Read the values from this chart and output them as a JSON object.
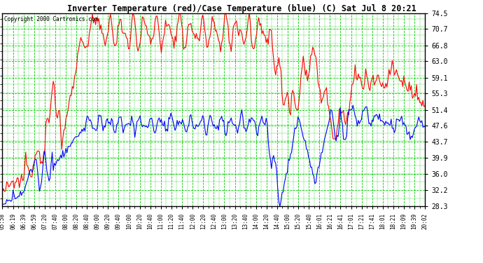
{
  "title": "Inverter Temperature (red)/Case Temperature (blue) (C) Sat Jul 8 20:21",
  "copyright": "Copyright 2000 Cartronics.com",
  "plot_bg_color": "#ffffff",
  "fig_bg_color": "#ffffff",
  "grid_color": "#00cc00",
  "ylabel_right_values": [
    74.5,
    70.7,
    66.8,
    63.0,
    59.1,
    55.3,
    51.4,
    47.6,
    43.7,
    39.9,
    36.0,
    32.2,
    28.3
  ],
  "ylim": [
    28.3,
    74.5
  ],
  "x_labels": [
    "05:58",
    "06:19",
    "06:39",
    "06:59",
    "07:20",
    "07:40",
    "08:00",
    "08:20",
    "08:40",
    "09:00",
    "09:20",
    "09:40",
    "10:00",
    "10:20",
    "10:40",
    "11:00",
    "11:20",
    "11:40",
    "12:00",
    "12:20",
    "12:40",
    "13:00",
    "13:20",
    "13:40",
    "14:00",
    "14:20",
    "14:40",
    "15:00",
    "15:20",
    "15:40",
    "16:01",
    "16:21",
    "16:41",
    "17:01",
    "17:21",
    "17:41",
    "18:01",
    "18:21",
    "19:09",
    "19:39",
    "20:02"
  ],
  "red_color": "#ff0000",
  "blue_color": "#0000ff",
  "n_points": 400
}
